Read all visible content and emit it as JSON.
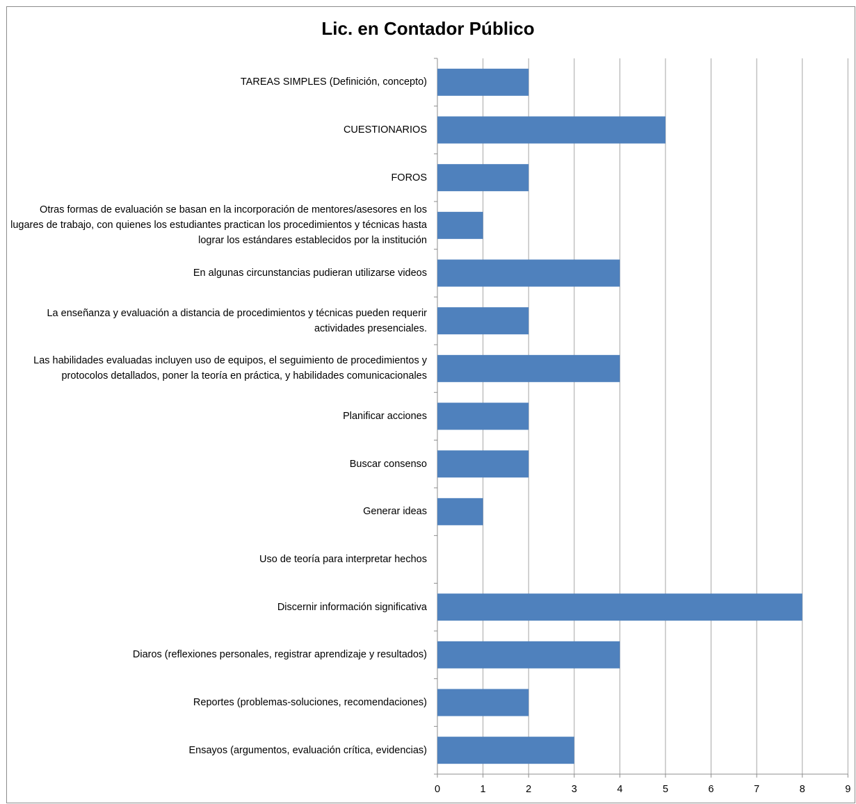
{
  "chart_data": {
    "type": "bar",
    "orientation": "horizontal",
    "title": "Lic. en Contador Público",
    "xlabel": "",
    "ylabel": "",
    "xlim": [
      0,
      9
    ],
    "ticks": [
      "0",
      "1",
      "2",
      "3",
      "4",
      "5",
      "6",
      "7",
      "8",
      "9"
    ],
    "grid": true,
    "bar_color": "#4f81bd",
    "categories": [
      "TAREAS SIMPLES (Definición, concepto)",
      "CUESTIONARIOS",
      "FOROS",
      "Otras formas de evaluación se basan en la incorporación de mentores/asesores en los lugares de trabajo, con quienes los estudiantes practican los procedimientos y técnicas hasta lograr los estándares establecidos por la institución",
      "En algunas circunstancias pudieran utilizarse videos",
      "La enseñanza y evaluación a distancia de procedimientos y técnicas pueden requerir actividades presenciales.",
      "Las habilidades evaluadas incluyen uso de equipos, el seguimiento de procedimientos y protocolos detallados, poner la teoría en práctica, y habilidades comunicacionales",
      "Planificar acciones",
      "Buscar consenso",
      "Generar ideas",
      "Uso de teoría para interpretar hechos",
      "Discernir información significativa",
      "Diaros (reflexiones personales, registrar aprendizaje y resultados)",
      "Reportes (problemas-soluciones, recomendaciones)",
      "Ensayos (argumentos, evaluación crítica, evidencias)"
    ],
    "values": [
      2,
      5,
      2,
      1,
      4,
      2,
      4,
      2,
      2,
      1,
      0,
      8,
      4,
      2,
      3
    ]
  }
}
